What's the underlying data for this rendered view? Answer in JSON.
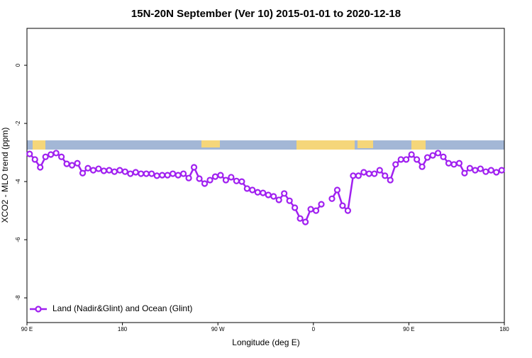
{
  "chart_data": {
    "type": "line",
    "title": "15N-20N September (Ver 10)   2015-01-01 to 2020-12-18",
    "xlabel": "Longitude (deg E)",
    "ylabel": "XCO2 - MLO trend (ppm)",
    "xlim": [
      90,
      540
    ],
    "ylim": [
      -8.85,
      1.27
    ],
    "xticks": [
      {
        "value": 90,
        "label": "90 E"
      },
      180,
      {
        "value": 270,
        "label": "90 W"
      },
      {
        "value": 360,
        "label": "0"
      },
      {
        "value": 450,
        "label": "90 E"
      },
      {
        "value": 540,
        "label": "180"
      }
    ],
    "yticks": [
      0,
      -2,
      -4,
      -6,
      -8
    ],
    "legend": "bottom-left",
    "x": [
      92.5,
      97.5,
      102.5,
      107.5,
      112.5,
      117.5,
      122.5,
      127.5,
      132.5,
      137.5,
      142.5,
      147.5,
      152.5,
      157.5,
      162.5,
      167.5,
      172.5,
      177.5,
      182.5,
      187.5,
      192.5,
      197.5,
      202.5,
      207.5,
      212.5,
      217.5,
      222.5,
      227.5,
      232.5,
      237.5,
      242.5,
      247.5,
      252.5,
      257.5,
      262.5,
      267.5,
      272.5,
      277.5,
      282.5,
      287.5,
      292.5,
      297.5,
      302.5,
      307.5,
      312.5,
      317.5,
      322.5,
      327.5,
      332.5,
      337.5,
      342.5,
      347.5,
      352.5,
      357.5,
      362.5,
      367.5,
      372.5,
      377.5,
      382.5,
      387.5,
      392.5,
      397.5,
      402.5,
      407.5,
      412.5,
      417.5,
      422.5,
      427.5,
      432.5,
      437.5,
      442.5,
      447.5,
      452.5,
      457.5,
      462.5,
      467.5,
      472.5,
      477.5,
      482.5,
      487.5,
      492.5,
      497.5,
      502.5,
      507.5,
      512.5,
      517.5,
      522.5,
      527.5,
      532.5,
      537.5
    ],
    "series": [
      {
        "name": "Land (Nadir&Glint) and Ocean (Glint)",
        "color": "#a020f0",
        "values": [
          -3.05,
          -3.24,
          -3.51,
          -3.15,
          -3.07,
          -3.02,
          -3.15,
          -3.39,
          -3.44,
          -3.37,
          -3.71,
          -3.54,
          -3.61,
          -3.56,
          -3.63,
          -3.61,
          -3.66,
          -3.61,
          -3.66,
          -3.73,
          -3.68,
          -3.73,
          -3.73,
          -3.73,
          -3.8,
          -3.78,
          -3.78,
          -3.73,
          -3.78,
          -3.73,
          -3.88,
          -3.51,
          -3.9,
          -4.07,
          -3.95,
          -3.83,
          -3.78,
          -3.95,
          -3.85,
          -3.98,
          -4.0,
          -4.24,
          -4.29,
          -4.37,
          -4.39,
          -4.46,
          -4.51,
          -4.63,
          -4.41,
          -4.66,
          -4.9,
          -5.27,
          -5.39,
          -4.95,
          -5.0,
          -4.78,
          null,
          -4.59,
          -4.29,
          -4.83,
          -5.0,
          -3.8,
          -3.8,
          -3.68,
          -3.73,
          -3.73,
          -3.61,
          -3.8,
          -3.95,
          -3.41,
          -3.24,
          -3.24,
          -3.07,
          -3.24,
          -3.49,
          -3.17,
          -3.1,
          -3.02,
          -3.15,
          -3.37,
          -3.41,
          -3.37,
          -3.71,
          -3.54,
          -3.61,
          -3.56,
          -3.66,
          -3.61,
          -3.68,
          -3.61
        ]
      }
    ]
  }
}
